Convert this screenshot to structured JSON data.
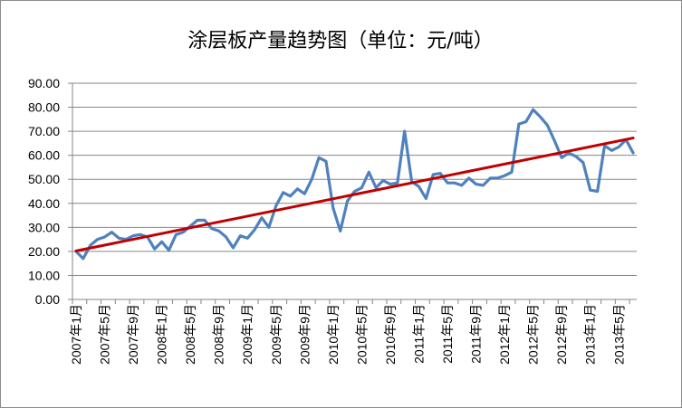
{
  "chart_data": {
    "type": "line",
    "title": "涂层板产量趋势图（单位：元/吨）",
    "xlabel": "",
    "ylabel": "",
    "ylim": [
      0,
      90
    ],
    "y_ticks": [
      "0.00",
      "10.00",
      "20.00",
      "30.00",
      "40.00",
      "50.00",
      "60.00",
      "70.00",
      "80.00",
      "90.00"
    ],
    "x_tick_labels": [
      "2007年1月",
      "2007年5月",
      "2007年9月",
      "2008年1月",
      "2008年5月",
      "2008年9月",
      "2009年1月",
      "2009年5月",
      "2009年9月",
      "2010年1月",
      "2010年5月",
      "2010年9月",
      "2011年1月",
      "2011年5月",
      "2011年9月",
      "2012年1月",
      "2012年5月",
      "2012年9月",
      "2013年1月",
      "2013年5月"
    ],
    "grid": {
      "horizontal": true,
      "vertical": false
    },
    "legend": "none",
    "series": [
      {
        "color": "#4f81bd",
        "x": [
          "2007-01",
          "2007-02",
          "2007-03",
          "2007-04",
          "2007-05",
          "2007-06",
          "2007-07",
          "2007-08",
          "2007-09",
          "2007-10",
          "2007-11",
          "2007-12",
          "2008-01",
          "2008-02",
          "2008-03",
          "2008-04",
          "2008-05",
          "2008-06",
          "2008-07",
          "2008-08",
          "2008-09",
          "2008-10",
          "2008-11",
          "2008-12",
          "2009-01",
          "2009-02",
          "2009-03",
          "2009-04",
          "2009-05",
          "2009-06",
          "2009-07",
          "2009-08",
          "2009-09",
          "2009-10",
          "2009-11",
          "2009-12",
          "2010-01",
          "2010-02",
          "2010-03",
          "2010-04",
          "2010-05",
          "2010-06",
          "2010-07",
          "2010-08",
          "2010-09",
          "2010-10",
          "2010-11",
          "2010-12",
          "2011-01",
          "2011-02",
          "2011-03",
          "2011-04",
          "2011-05",
          "2011-06",
          "2011-07",
          "2011-08",
          "2011-09",
          "2011-10",
          "2011-11",
          "2011-12",
          "2012-01",
          "2012-02",
          "2012-03",
          "2012-04",
          "2012-05",
          "2012-06",
          "2012-07",
          "2012-08",
          "2012-09",
          "2012-10",
          "2012-11",
          "2012-12",
          "2013-01",
          "2013-02",
          "2013-03",
          "2013-04",
          "2013-05",
          "2013-06",
          "2013-07"
        ],
        "values": [
          20,
          17,
          22.5,
          25,
          26,
          28,
          25.5,
          25,
          26.5,
          27,
          26,
          21,
          24,
          20.5,
          27,
          28,
          30.5,
          33,
          33,
          29.5,
          28.5,
          26,
          21.5,
          26.5,
          25.5,
          29,
          34,
          30,
          39,
          44.5,
          43,
          46,
          44,
          50,
          59,
          57.5,
          38,
          28.5,
          41,
          45,
          46.5,
          53,
          46.5,
          49.5,
          48,
          48.5,
          70,
          49,
          47,
          42,
          52,
          52.5,
          48.5,
          48.5,
          47.5,
          50.5,
          48,
          47.5,
          50.5,
          50.5,
          51.5,
          53,
          73,
          74,
          79,
          76,
          72.5,
          66,
          59,
          61,
          59.5,
          57,
          45.5,
          45,
          64,
          62,
          63.5,
          66.5,
          61
        ]
      },
      {
        "type": "trendline",
        "color": "#c00000",
        "x": [
          "2007-01",
          "2013-07"
        ],
        "values": [
          20.2,
          67.2
        ]
      }
    ]
  }
}
